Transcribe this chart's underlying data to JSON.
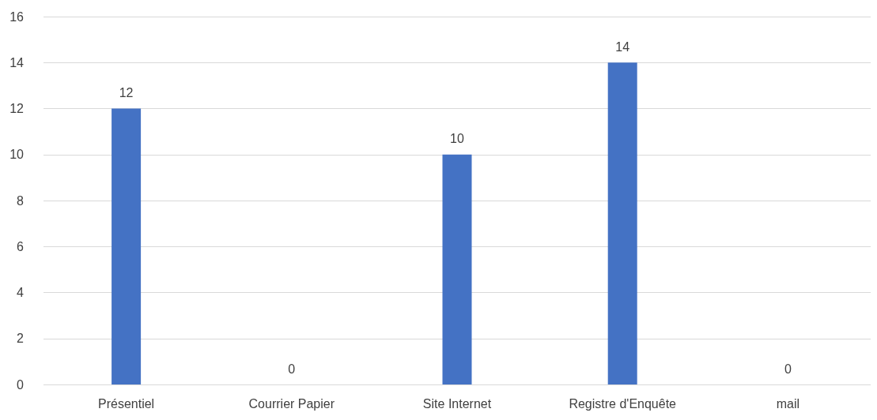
{
  "chart_data": {
    "type": "bar",
    "categories": [
      "Présentiel",
      "Courrier Papier",
      "Site Internet",
      "Registre d'Enquête",
      "mail"
    ],
    "values": [
      12,
      0,
      10,
      14,
      0
    ],
    "color": "#4472c4",
    "ylim": [
      0,
      16
    ],
    "yticks": [
      0,
      2,
      4,
      6,
      8,
      10,
      12,
      14,
      16
    ],
    "grid": "y",
    "data_labels": true
  }
}
